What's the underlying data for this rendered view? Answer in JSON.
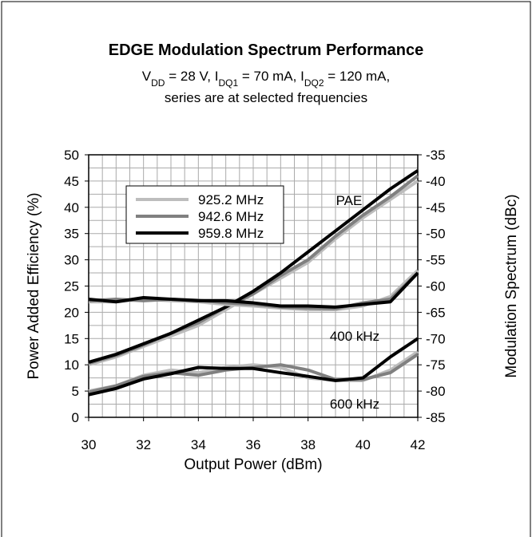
{
  "chart_data": {
    "type": "line",
    "title": "EDGE Modulation Spectrum Performance",
    "subtitle_parts": [
      {
        "text": "V"
      },
      {
        "text": "DD",
        "sub": true
      },
      {
        "text": " = 28 V,  I"
      },
      {
        "text": "DQ1",
        "sub": true
      },
      {
        "text": " = 70 mA, I"
      },
      {
        "text": "DQ2",
        "sub": true
      },
      {
        "text": " = 120 mA,"
      }
    ],
    "subtitle2": "series are at selected frequencies",
    "x_label": "Output Power (dBm)",
    "y_label": "Power Added Efficiency (%)",
    "y2_label": "Modulation Spectrum (dBc)",
    "x": [
      30,
      31,
      32,
      33,
      34,
      35,
      36,
      37,
      38,
      39,
      40,
      41,
      42
    ],
    "xlim": [
      30,
      42
    ],
    "xticks": [
      30,
      32,
      34,
      36,
      38,
      40,
      42
    ],
    "ylim": [
      0,
      50
    ],
    "yticks": [
      0,
      5,
      10,
      15,
      20,
      25,
      30,
      35,
      40,
      45,
      50
    ],
    "y2lim": [
      -85,
      -35
    ],
    "y2ticks": [
      -85,
      -80,
      -75,
      -70,
      -65,
      -60,
      -55,
      -50,
      -45,
      -40,
      -35
    ],
    "grid": true,
    "grid_x": [
      30,
      30.5,
      31,
      31.5,
      32,
      32.5,
      33,
      33.5,
      34,
      34.5,
      35,
      35.5,
      36,
      36.5,
      37,
      37.5,
      38,
      38.5,
      39,
      39.5,
      40,
      40.5,
      41,
      41.5,
      42
    ],
    "grid_y": [
      0,
      2.5,
      5,
      7.5,
      10,
      12.5,
      15,
      17.5,
      20,
      22.5,
      25,
      27.5,
      30,
      32.5,
      35,
      37.5,
      40,
      42.5,
      45,
      47.5,
      50
    ],
    "legend": "upper left",
    "series": [
      {
        "name": "925.2 MHz",
        "color": "#bdbdbd"
      },
      {
        "name": "942.6 MHz",
        "color": "#808080"
      },
      {
        "name": "959.8 MHz",
        "color": "#000000"
      }
    ],
    "groups": [
      {
        "label": "PAE",
        "axis": "y",
        "lines": [
          [
            10,
            11.5,
            13.5,
            15.5,
            17.5,
            20.5,
            23.5,
            26.5,
            29.5,
            34,
            38,
            41.5,
            45
          ],
          [
            10.3,
            11.8,
            13.8,
            16,
            18,
            21,
            23.5,
            27,
            30,
            34.5,
            38.5,
            42,
            46
          ],
          [
            10.5,
            12,
            14,
            16,
            18.5,
            21,
            24,
            27.5,
            31.5,
            35.5,
            39.5,
            43.5,
            47
          ]
        ]
      },
      {
        "label": "400 kHz",
        "axis": "y2",
        "lines": [
          [
            -63,
            -63,
            -62.5,
            -62.8,
            -63,
            -63.5,
            -63.8,
            -64.2,
            -64.5,
            -64.5,
            -63.8,
            -62,
            -57
          ],
          [
            -62.8,
            -62.5,
            -62.8,
            -62.5,
            -62.7,
            -63.2,
            -63.5,
            -64,
            -64.2,
            -64.3,
            -63.2,
            -62.5,
            -57.5
          ],
          [
            -62.5,
            -63,
            -62.2,
            -62.5,
            -62.8,
            -62.8,
            -63.2,
            -63.8,
            -63.8,
            -64,
            -63.5,
            -63,
            -57.5
          ]
        ]
      },
      {
        "label": "600 kHz",
        "axis": "y2",
        "lines": [
          [
            -80,
            -79,
            -77,
            -76,
            -76.5,
            -75.5,
            -75,
            -75.5,
            -77.5,
            -78,
            -78,
            -76,
            -72.5
          ],
          [
            -80.2,
            -79,
            -77.2,
            -76.5,
            -77,
            -76,
            -75.5,
            -75,
            -76,
            -77.8,
            -77.8,
            -76.5,
            -73
          ],
          [
            -80.7,
            -79.5,
            -77.7,
            -76.7,
            -75.5,
            -75.7,
            -75.7,
            -76.5,
            -77.2,
            -78,
            -77.5,
            -73.5,
            -70
          ]
        ]
      }
    ]
  }
}
